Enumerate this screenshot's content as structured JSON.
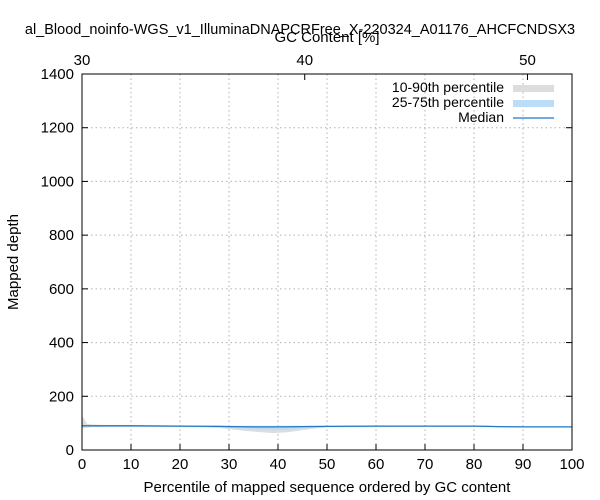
{
  "chart_data": {
    "type": "area",
    "title": "al_Blood_noinfo-WGS_v1_IlluminaDNAPCRFree_X-220324_A01176_AHCFCNDSX3",
    "xlabel": "Percentile of mapped sequence ordered by GC content",
    "ylabel": "Mapped depth",
    "x2label": "GC Content [%]",
    "xlim": [
      0,
      100
    ],
    "ylim": [
      0,
      1400
    ],
    "x2lim": [
      30,
      52
    ],
    "xticks": [
      0,
      10,
      20,
      30,
      40,
      50,
      60,
      70,
      80,
      90,
      100
    ],
    "yticks": [
      0,
      200,
      400,
      600,
      800,
      1000,
      1200,
      1400
    ],
    "x2ticks": [
      30,
      40,
      50
    ],
    "grid": true,
    "legend_position": "top-right",
    "colors": {
      "p10_90": "#dddddd",
      "p25_75": "#bbddf8",
      "median": "#1f78c8"
    },
    "series": [
      {
        "name": "10-90th percentile",
        "kind": "band",
        "x": [
          0,
          1,
          2,
          5,
          10,
          15,
          20,
          25,
          28,
          30,
          33,
          36,
          39,
          42,
          45,
          48,
          50,
          55,
          60,
          65,
          70,
          75,
          80,
          83,
          85,
          90,
          95,
          100
        ],
        "low": [
          80,
          83,
          85,
          86,
          86,
          86,
          85,
          84,
          82,
          78,
          72,
          67,
          63,
          66,
          74,
          81,
          84,
          85,
          85,
          86,
          86,
          86,
          86,
          85,
          85,
          84,
          84,
          84
        ],
        "high": [
          130,
          98,
          95,
          93,
          92,
          92,
          91,
          91,
          90,
          90,
          90,
          90,
          90,
          90,
          90,
          90,
          90,
          91,
          91,
          91,
          91,
          91,
          91,
          90,
          89,
          88,
          88,
          88
        ]
      },
      {
        "name": "25-75th percentile",
        "kind": "band",
        "x": [
          0,
          5,
          10,
          20,
          28,
          30,
          33,
          36,
          39,
          42,
          45,
          48,
          50,
          60,
          70,
          80,
          85,
          90,
          100
        ],
        "low": [
          88,
          88,
          88,
          87,
          86,
          84,
          80,
          76,
          74,
          76,
          81,
          85,
          86,
          87,
          88,
          88,
          87,
          86,
          86
        ],
        "high": [
          92,
          91,
          91,
          90,
          90,
          90,
          89,
          88,
          88,
          88,
          89,
          89,
          89,
          90,
          90,
          90,
          89,
          88,
          88
        ]
      },
      {
        "name": "Median",
        "kind": "line",
        "x": [
          0,
          10,
          20,
          28,
          30,
          35,
          40,
          45,
          50,
          60,
          70,
          80,
          83,
          85,
          90,
          100
        ],
        "y": [
          90,
          90,
          89,
          88,
          87,
          86,
          86,
          87,
          88,
          89,
          89,
          89,
          88,
          87,
          86,
          86
        ]
      }
    ]
  }
}
